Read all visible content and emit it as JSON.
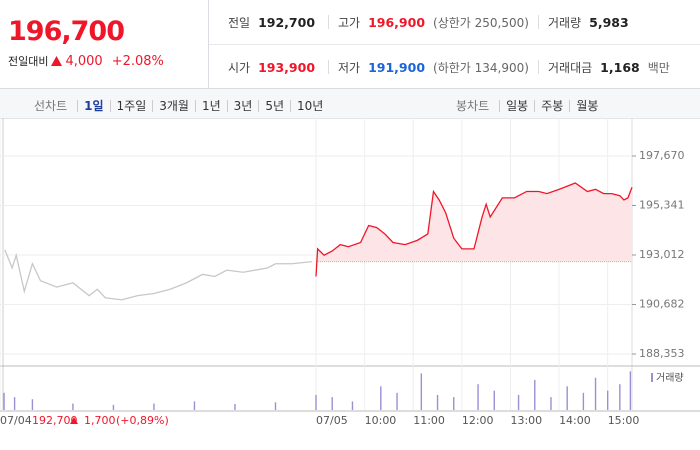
{
  "header": {
    "price": "196,700",
    "change_label": "전일대비",
    "change": "4,000",
    "change_rate": "+2.08%",
    "stats": [
      [
        {
          "label": "전일",
          "value": "192,700",
          "color": "#222"
        },
        {
          "label": "고가",
          "value": "196,900",
          "note": "(상한가 250,500)",
          "color": "#f0162a"
        },
        {
          "label": "거래량",
          "value": "5,983",
          "color": "#222"
        }
      ],
      [
        {
          "label": "시가",
          "value": "193,900",
          "color": "#f0162a"
        },
        {
          "label": "저가",
          "value": "191,900",
          "note": "(하한가 134,900)",
          "color": "#1b64da"
        },
        {
          "label": "거래대금",
          "value": "1,168",
          "note": "백만",
          "color": "#222"
        }
      ]
    ]
  },
  "toolbar": {
    "line_label": "선차트",
    "line_tabs": [
      "1일",
      "1주일",
      "3개월",
      "1년",
      "3년",
      "5년",
      "10년"
    ],
    "selected": 0,
    "candle_label": "봉차트",
    "candle_tabs": [
      "일봉",
      "주봉",
      "월봉"
    ]
  },
  "chart": {
    "ylim": [
      187835,
      199458
    ],
    "yticks": [
      {
        "value": 197670,
        "label": "197,670"
      },
      {
        "value": 195341,
        "label": "195,341"
      },
      {
        "value": 193012,
        "label": "193,012"
      },
      {
        "value": 190682,
        "label": "190,682"
      },
      {
        "value": 188353,
        "label": "188,353"
      }
    ],
    "xlim": [
      -390,
      390
    ],
    "xticks": [
      {
        "value": -390,
        "label": "07/04"
      },
      {
        "value": 0,
        "label": "07/05"
      },
      {
        "value": 60,
        "label": "10:00"
      },
      {
        "value": 120,
        "label": "11:00"
      },
      {
        "value": 180,
        "label": "12:00"
      },
      {
        "value": 240,
        "label": "13:00"
      },
      {
        "value": 300,
        "label": "14:00"
      },
      {
        "value": 360,
        "label": "15:00"
      }
    ],
    "prev_close": 192700,
    "prev_day": {
      "close": "192,700",
      "change": "1,700",
      "rate": "(+0,89%)"
    },
    "series": [
      {
        "color": "#c8c8c8",
        "x": [
          -384,
          -375,
          -370,
          -360,
          -350,
          -340,
          -320,
          -300,
          -280,
          -270,
          -260,
          -240,
          -220,
          -200,
          -180,
          -160,
          -140,
          -125,
          -110,
          -90,
          -60,
          -50,
          -30,
          -5
        ],
        "values": [
          193250,
          192400,
          193000,
          191300,
          192600,
          191800,
          191500,
          191700,
          191100,
          191400,
          191000,
          190900,
          191100,
          191200,
          191400,
          191700,
          192100,
          192000,
          192300,
          192200,
          192400,
          192600,
          192600,
          192700
        ]
      },
      {
        "color": "#f0162a",
        "fill": "#fde4e6",
        "x": [
          0,
          2,
          10,
          20,
          30,
          40,
          55,
          65,
          75,
          85,
          95,
          110,
          125,
          138,
          145,
          152,
          160,
          170,
          180,
          195,
          205,
          210,
          215,
          230,
          245,
          260,
          275,
          285,
          300,
          320,
          335,
          345,
          355,
          365,
          375,
          380,
          385,
          390
        ],
        "values": [
          192000,
          193300,
          193000,
          193200,
          193500,
          193400,
          193600,
          194400,
          194300,
          194000,
          193600,
          193500,
          193700,
          194000,
          196000,
          195600,
          195000,
          193800,
          193300,
          193300,
          194800,
          195400,
          194800,
          195700,
          195700,
          196000,
          196000,
          195900,
          196100,
          196400,
          196000,
          196100,
          195900,
          195900,
          195800,
          195600,
          195700,
          196200
        ]
      }
    ],
    "volume": {
      "label": "거래량",
      "color": "#9b8fd6",
      "ylim": [
        0,
        100
      ],
      "x": [
        -385,
        -372,
        -350,
        -300,
        -250,
        -200,
        -150,
        -100,
        -50,
        0,
        20,
        45,
        80,
        100,
        130,
        150,
        170,
        200,
        220,
        250,
        270,
        290,
        310,
        330,
        345,
        360,
        375,
        388
      ],
      "values": [
        40,
        30,
        25,
        15,
        12,
        15,
        20,
        14,
        18,
        35,
        30,
        20,
        55,
        40,
        85,
        35,
        30,
        60,
        45,
        35,
        70,
        30,
        55,
        40,
        75,
        45,
        60,
        90
      ]
    }
  }
}
